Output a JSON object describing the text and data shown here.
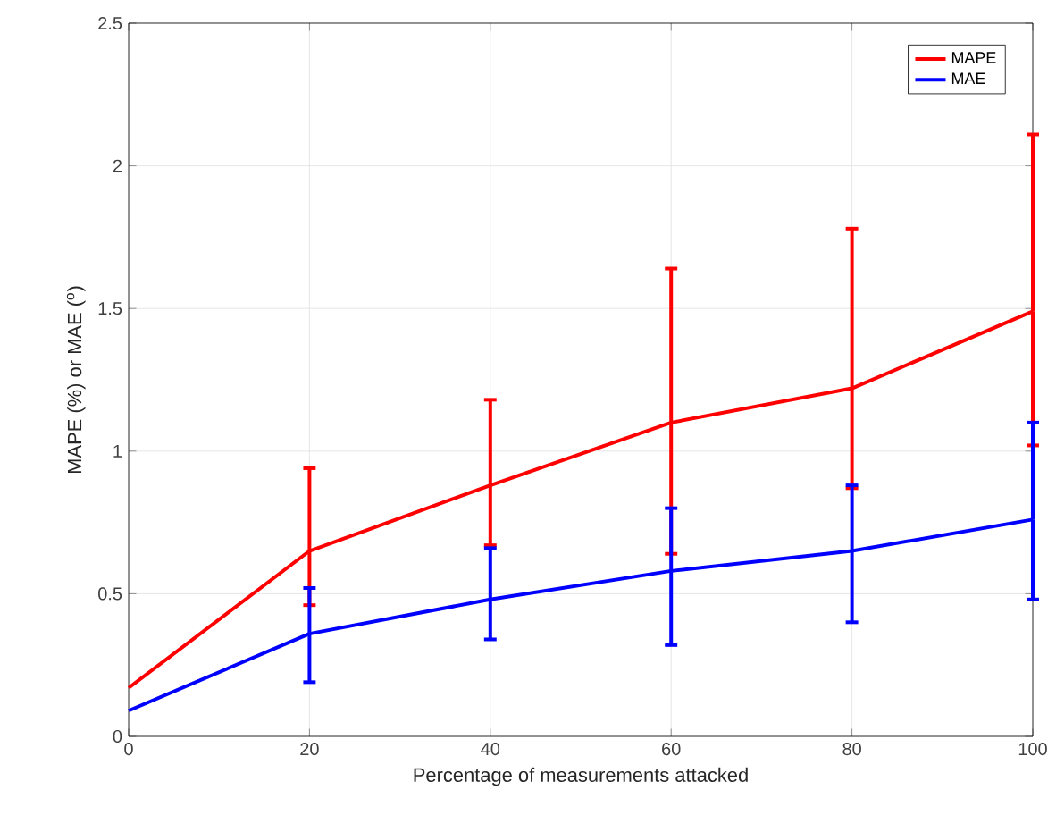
{
  "chart_data": {
    "type": "line",
    "xlabel": "Percentage of measurements attacked",
    "ylabel": "MAPE (%) or MAE ($^{o}$)",
    "x": [
      0,
      20,
      40,
      60,
      80,
      100
    ],
    "series": [
      {
        "name": "MAPE",
        "color": "#ff0000",
        "values": [
          0.17,
          0.65,
          0.88,
          1.1,
          1.22,
          1.49
        ],
        "errors": [
          null,
          [
            0.46,
            0.94
          ],
          [
            0.67,
            1.18
          ],
          [
            0.64,
            1.64
          ],
          [
            0.87,
            1.78
          ],
          [
            1.02,
            2.11
          ]
        ]
      },
      {
        "name": "MAE",
        "color": "#0000ff",
        "values": [
          0.09,
          0.36,
          0.48,
          0.58,
          0.65,
          0.76
        ],
        "errors": [
          null,
          [
            0.19,
            0.52
          ],
          [
            0.34,
            0.66
          ],
          [
            0.32,
            0.8
          ],
          [
            0.4,
            0.88
          ],
          [
            0.48,
            1.1
          ]
        ]
      }
    ],
    "xlim": [
      0,
      100
    ],
    "ylim": [
      0,
      2.5
    ],
    "xticks": [
      0,
      20,
      40,
      60,
      80,
      100
    ],
    "yticks": [
      0,
      0.5,
      1,
      1.5,
      2,
      2.5
    ],
    "grid": true,
    "legend": "top right",
    "marker": "none",
    "line_style": "solid"
  }
}
